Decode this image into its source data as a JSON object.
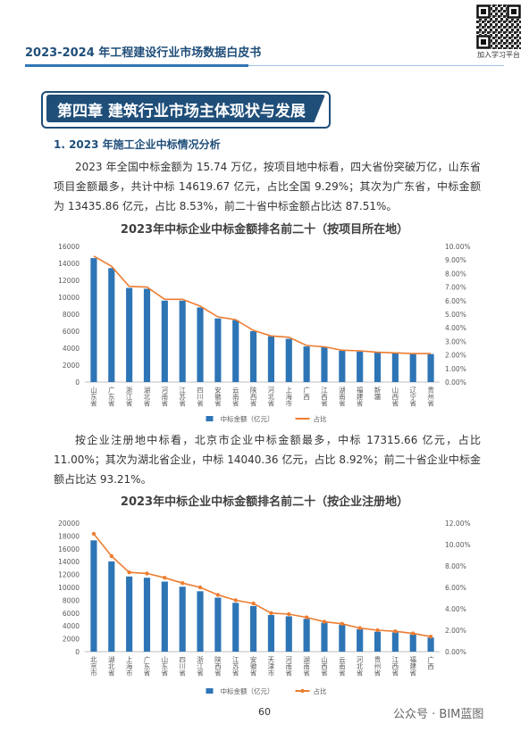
{
  "header": {
    "title": "2023-2024 年工程建设行业市场数据白皮书",
    "qr_caption": "加入学习平台"
  },
  "chapter": "第四章 建筑行业市场主体现状与发展",
  "section": "1. 2023 年施工企业中标情况分析",
  "paragraphs": [
    "2023 年全国中标金额为 15.74 万亿，按项目地中标看，四大省份突破万亿，山东省项目金额最多，共计中标 14619.67 亿元，占比全国 9.29%；其次为广东省，中标金额为 13435.86 亿元，占比 8.53%，前二十省中标金额占比达 87.51%。",
    "按企业注册地中标看，北京市企业中标金额最多，中标 17315.66 亿元，占比 11.00%；其次为湖北省企业，中标 14040.36 亿元，占比 8.92%；前二十省企业中标金额占比达 93.21%。"
  ],
  "chart_data": [
    {
      "type": "bar",
      "title": "2023年中标企业中标金额排名前二十（按项目所在地）",
      "categories": [
        "山东省",
        "广东省",
        "浙江省",
        "湖北省",
        "河南省",
        "江苏省",
        "四川省",
        "安徽省",
        "云南省",
        "陕西省",
        "河北省",
        "上海市",
        "广西",
        "江西省",
        "湖南省",
        "福建省",
        "新疆",
        "山西省",
        "辽宁省",
        "贵州省"
      ],
      "series": [
        {
          "name": "中标金额（亿元）",
          "color": "#2e75b6",
          "values": [
            14619.67,
            13435.86,
            11100,
            11000,
            9600,
            9600,
            8800,
            7500,
            7300,
            6000,
            5400,
            5100,
            4200,
            4100,
            3700,
            3600,
            3500,
            3400,
            3300,
            3300
          ]
        },
        {
          "name": "占比",
          "color": "#ed7d31",
          "type": "line",
          "axis": "y2",
          "values": [
            9.29,
            8.53,
            7.05,
            7.0,
            6.1,
            6.1,
            5.6,
            4.8,
            4.6,
            3.8,
            3.4,
            3.3,
            2.7,
            2.6,
            2.35,
            2.3,
            2.2,
            2.15,
            2.1,
            2.1
          ]
        }
      ],
      "ylim": [
        0,
        16000
      ],
      "yticks": [
        0,
        2000,
        4000,
        6000,
        8000,
        10000,
        12000,
        14000,
        16000
      ],
      "y2lim": [
        0,
        10
      ],
      "y2ticks": [
        {
          "value": 0,
          "label": "0.00%"
        },
        {
          "value": 1,
          "label": "1.00%"
        },
        {
          "value": 2,
          "label": "2.00%"
        },
        {
          "value": 3,
          "label": "3.00%"
        },
        {
          "value": 4,
          "label": "4.00%"
        },
        {
          "value": 5,
          "label": "5.00%"
        },
        {
          "value": 6,
          "label": "6.00%"
        },
        {
          "value": 7,
          "label": "7.00%"
        },
        {
          "value": 8,
          "label": "8.00%"
        },
        {
          "value": 9,
          "label": "9.00%"
        },
        {
          "value": 10,
          "label": "10.00%"
        }
      ],
      "markers": false,
      "legend": "bottom"
    },
    {
      "type": "bar",
      "title": "2023年中标企业中标金额排名前二十（按企业注册地）",
      "categories": [
        "北京市",
        "湖北省",
        "上海市",
        "广东省",
        "山东省",
        "四川省",
        "浙江省",
        "陕西省",
        "江苏省",
        "安徽省",
        "天津市",
        "河南省",
        "湖南省",
        "山西省",
        "云南省",
        "河北省",
        "贵州省",
        "江西省",
        "福建省",
        "广西"
      ],
      "series": [
        {
          "name": "中标金额（亿元）",
          "color": "#2e75b6",
          "values": [
            17315.66,
            14040.36,
            11700,
            11500,
            10900,
            10100,
            9400,
            8400,
            7600,
            7100,
            5700,
            5500,
            5100,
            4500,
            4200,
            3500,
            3100,
            3000,
            2700,
            2200
          ]
        },
        {
          "name": "占比",
          "color": "#ed7d31",
          "type": "line",
          "axis": "y2",
          "values": [
            11.0,
            8.92,
            7.4,
            7.3,
            6.9,
            6.4,
            6.0,
            5.3,
            4.8,
            4.5,
            3.6,
            3.5,
            3.2,
            2.8,
            2.6,
            2.2,
            2.0,
            1.9,
            1.7,
            1.4
          ]
        }
      ],
      "ylim": [
        0,
        20000
      ],
      "yticks": [
        0,
        2000,
        4000,
        6000,
        8000,
        10000,
        12000,
        14000,
        16000,
        18000,
        20000
      ],
      "y2lim": [
        0,
        12
      ],
      "y2ticks": [
        {
          "value": 0,
          "label": "0.00%"
        },
        {
          "value": 2,
          "label": "2.00%"
        },
        {
          "value": 4,
          "label": "4.00%"
        },
        {
          "value": 6,
          "label": "6.00%"
        },
        {
          "value": 8,
          "label": "8.00%"
        },
        {
          "value": 10,
          "label": "10.00%"
        },
        {
          "value": 12,
          "label": "12.00%"
        }
      ],
      "markers": true,
      "legend": "bottom"
    }
  ],
  "page_number": "60",
  "watermark": "公众号 · BIM蓝图"
}
